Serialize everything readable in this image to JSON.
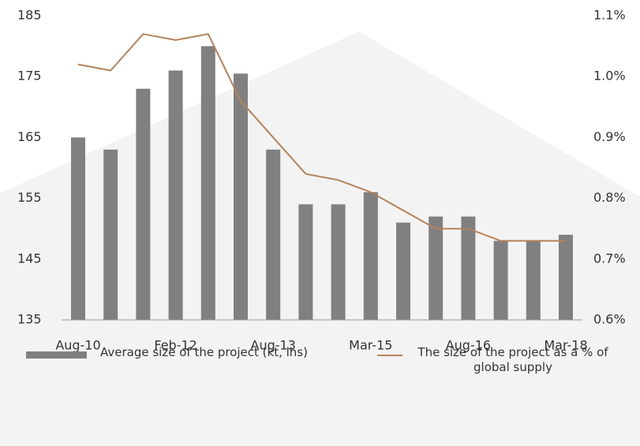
{
  "chart_data": {
    "type": "bar",
    "categories": [
      "Aug-10",
      null,
      null,
      "Feb-12",
      null,
      null,
      "Aug-13",
      null,
      null,
      "Mar-15",
      null,
      null,
      "Aug-16",
      null,
      null,
      "Mar-18"
    ],
    "series": [
      {
        "name": "Average size of the project (kt, lhs)",
        "color": "#808080",
        "values": [
          165,
          163,
          173,
          176,
          180,
          175.5,
          163,
          154,
          154,
          156,
          151,
          152,
          152,
          148,
          148,
          149
        ]
      },
      {
        "name": "The size of the project as a % of global supply",
        "color": "#b5835a",
        "type": "line",
        "axis": "y2",
        "values": [
          1.02,
          1.01,
          1.07,
          1.06,
          1.07,
          0.96,
          0.9,
          0.84,
          0.83,
          0.81,
          0.78,
          0.75,
          0.75,
          0.73,
          0.73,
          0.73
        ]
      }
    ],
    "ylim": [
      135,
      185
    ],
    "yticks": [
      135,
      145,
      155,
      165,
      175,
      185
    ],
    "y2lim": [
      0.6,
      1.1
    ],
    "y2ticks": [
      {
        "value": 0.6,
        "label": "0.6%"
      },
      {
        "value": 0.7,
        "label": "0.7%"
      },
      {
        "value": 0.8,
        "label": "0.8%"
      },
      {
        "value": 0.9,
        "label": "0.9%"
      },
      {
        "value": 1.0,
        "label": "1.0%"
      },
      {
        "value": 1.1,
        "label": "1.1%"
      }
    ],
    "legend": "bottom"
  }
}
